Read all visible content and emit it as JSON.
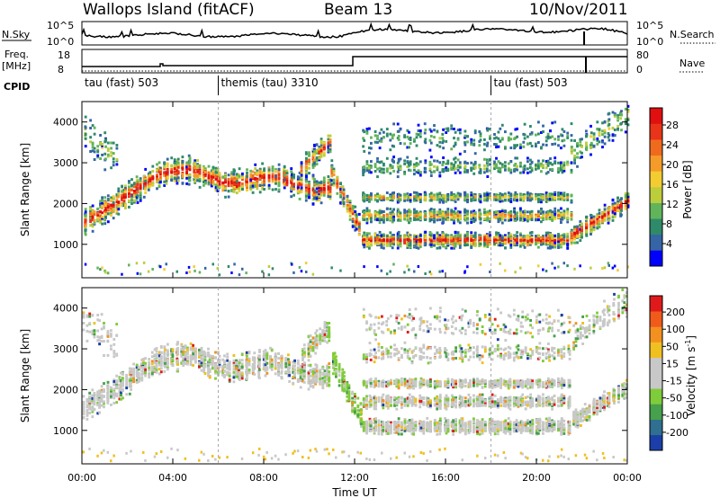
{
  "header": {
    "station": "Wallops Island (fitACF)",
    "beam": "Beam 13",
    "date": "10/Nov/2011"
  },
  "top_panels": {
    "nsky_label": "N.Sky",
    "nsky_ticks": [
      "10^5",
      "10^0"
    ],
    "nsearch_label": "N.Search",
    "nsearch_ticks": [
      "10^5",
      "10^0"
    ],
    "freq_label_1": "Freq.",
    "freq_label_2": "[MHz]",
    "freq_ticks": [
      "18",
      "8"
    ],
    "nave_label": "Nave",
    "nave_ticks": [
      "80",
      "0"
    ],
    "cpid_label": "CPID",
    "cpid_segments": [
      {
        "label": "tau (fast) 503",
        "start_hour": 0
      },
      {
        "label": "themis (tau) 3310",
        "start_hour": 6
      },
      {
        "label": "tau (fast) 503",
        "start_hour": 18
      }
    ]
  },
  "chart_data": [
    {
      "type": "heatmap",
      "title": "",
      "xlabel": "Time UT",
      "ylabel": "Slant Range [km]",
      "xlim_hours": [
        0,
        24
      ],
      "ylim_km": [
        180,
        4500
      ],
      "x_ticks": [
        "00:00",
        "04:00",
        "08:00",
        "12:00",
        "16:00",
        "20:00",
        "00:00"
      ],
      "y_ticks": [
        "1000",
        "2000",
        "3000",
        "4000"
      ],
      "colorbar_label": "Power [dB]",
      "colorbar_ticks": [
        "4",
        "8",
        "12",
        "16",
        "20",
        "24",
        "28"
      ],
      "colorbar_colors": [
        "#0000ff",
        "#3565a5",
        "#2f8a6a",
        "#61b45a",
        "#bccd3c",
        "#f3cc32",
        "#f59b2a",
        "#f06a1e",
        "#e83418",
        "#e10f0f"
      ]
    },
    {
      "type": "heatmap",
      "title": "",
      "xlabel": "Time UT",
      "ylabel": "Slant Range [km]",
      "xlim_hours": [
        0,
        24
      ],
      "ylim_km": [
        180,
        4500
      ],
      "x_ticks": [
        "00:00",
        "04:00",
        "08:00",
        "12:00",
        "16:00",
        "20:00",
        "00:00"
      ],
      "y_ticks": [
        "1000",
        "2000",
        "3000",
        "4000"
      ],
      "colorbar_label": "Velocity [m s",
      "colorbar_label_sup": "-1",
      "colorbar_label_end": "]",
      "colorbar_ticks": [
        "200",
        "100",
        "50",
        "15",
        "-15",
        "-50",
        "-100",
        "-200"
      ],
      "colorbar_colors": [
        "#1b3ea8",
        "#2f6f8f",
        "#46a04c",
        "#7fcc3a",
        "#c8c8c8",
        "#c8c8c8",
        "#f0c020",
        "#f39020",
        "#f05a1a",
        "#e01a1a"
      ]
    }
  ],
  "x_axis_title": "Time UT"
}
